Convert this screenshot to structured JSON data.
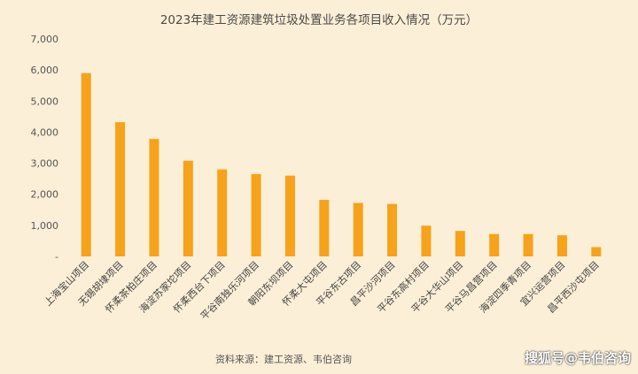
{
  "chart_data": {
    "type": "bar",
    "title": "2023年建工资源建筑垃圾处置业务各项目收入情况（万元）",
    "categories": [
      "上海宝山项目",
      "无锡胡埭项目",
      "怀柔茶柏庄项目",
      "海淀苏家坨项目",
      "怀柔西台下项目",
      "平谷南独乐河项目",
      "朝阳东坝项目",
      "怀柔大屯项目",
      "平谷东古项目",
      "昌平沙河项目",
      "平谷东高村项目",
      "平谷大华山项目",
      "平谷马昌营项目",
      "海淀四季青项目",
      "宜兴运营项目",
      "昌平西沙屯项目"
    ],
    "values": [
      5900,
      4320,
      3780,
      3080,
      2800,
      2650,
      2600,
      1820,
      1720,
      1690,
      990,
      820,
      720,
      720,
      680,
      300
    ],
    "ylim": [
      0,
      7000
    ],
    "yticks": [
      "-",
      "1,000",
      "2,000",
      "3,000",
      "4,000",
      "5,000",
      "6,000",
      "7,000"
    ],
    "xlabel": "",
    "ylabel": "",
    "grid": false,
    "bar_color": "#f7a21b"
  },
  "source_note": "资料来源：建工资源、韦伯咨询",
  "watermark": "搜狐号@韦伯咨询"
}
